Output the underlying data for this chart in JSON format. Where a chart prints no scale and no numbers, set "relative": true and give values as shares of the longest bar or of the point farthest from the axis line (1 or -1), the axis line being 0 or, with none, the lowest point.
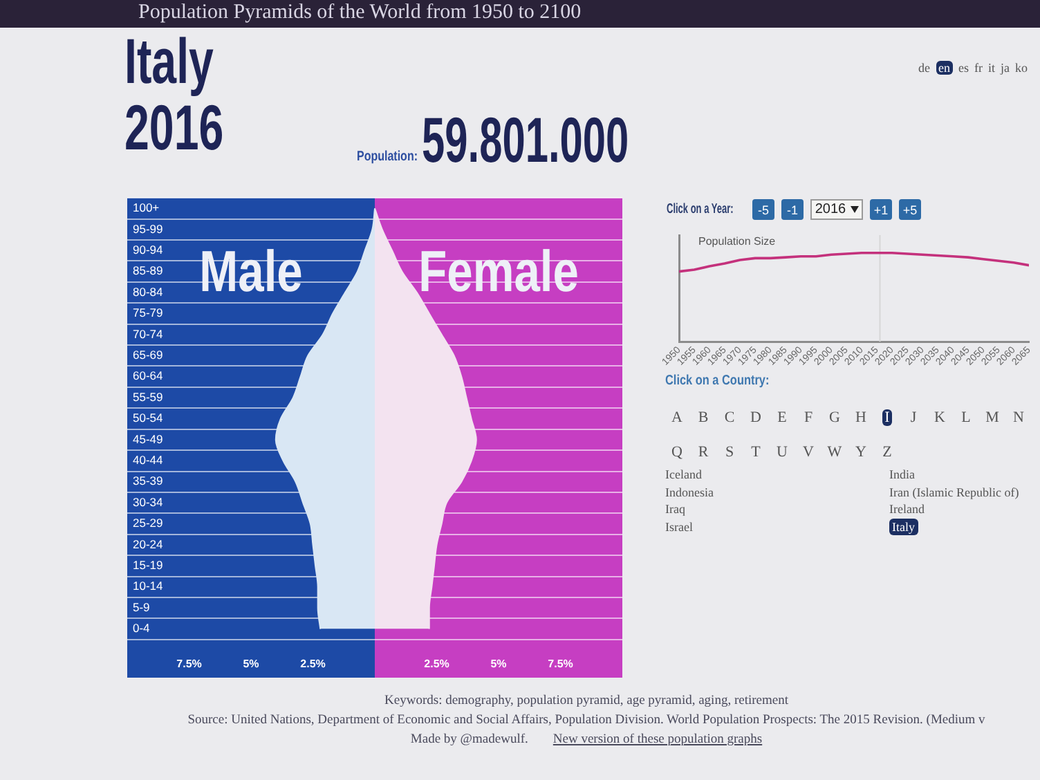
{
  "chart_data": [
    {
      "type": "area",
      "orientation": "horizontal",
      "title": "Italy 2016",
      "categories": [
        "100+",
        "95-99",
        "90-94",
        "85-89",
        "80-84",
        "75-79",
        "70-74",
        "65-69",
        "60-64",
        "55-59",
        "50-54",
        "45-49",
        "40-44",
        "35-39",
        "30-34",
        "25-29",
        "20-24",
        "15-19",
        "10-14",
        "5-9",
        "0-4"
      ],
      "series": [
        {
          "name": "Male",
          "color": "#d9e7f4",
          "values": [
            0,
            -0.1,
            -0.4,
            -0.7,
            -1.2,
            -1.7,
            -2.1,
            -2.7,
            -3,
            -3.3,
            -3.8,
            -4,
            -3.7,
            -3.2,
            -2.9,
            -2.6,
            -2.5,
            -2.4,
            -2.3,
            -2.3,
            -2.2
          ]
        },
        {
          "name": "Female",
          "color": "#f3e3f0",
          "values": [
            0,
            0.3,
            0.7,
            1.1,
            1.7,
            2.2,
            2.7,
            3.2,
            3.5,
            3.7,
            3.9,
            4.1,
            3.9,
            3.5,
            2.9,
            2.7,
            2.5,
            2.4,
            2.3,
            2.2,
            2.2
          ]
        }
      ],
      "xlim": [
        -10,
        10
      ],
      "xticks": [
        {
          "value": -7.5,
          "label": "7.5%"
        },
        {
          "value": -5,
          "label": "5%"
        },
        {
          "value": -2.5,
          "label": "2.5%"
        },
        {
          "value": 2.5,
          "label": "2.5%"
        },
        {
          "value": 5,
          "label": "5%"
        },
        {
          "value": 7.5,
          "label": "7.5%"
        }
      ],
      "grid": "y",
      "bands": [
        {
          "axis": "x",
          "from": -10,
          "to": 0,
          "color": "#1d4aa6"
        },
        {
          "axis": "x",
          "from": 0,
          "to": 10,
          "color": "#c63ec2"
        }
      ],
      "annotations": [
        "Population:",
        "59.801.000",
        "Keywords: demography, population pyramid, age pyramid, aging, retirement",
        "Source: United Nations, Department of Economic and Social Affairs, Population Division. World Population Prospects: The 2015 Revision. (Medium v",
        "Made by @madewulf.",
        "New version of these population graphs"
      ]
    },
    {
      "type": "line",
      "title": "Population Size",
      "x": [
        1950,
        1955,
        1960,
        1965,
        1970,
        1975,
        1980,
        1985,
        1990,
        1995,
        2000,
        2005,
        2010,
        2015,
        2020,
        2025,
        2030,
        2035,
        2040,
        2045,
        2050,
        2055,
        2060,
        2065
      ],
      "values": [
        0.79,
        0.81,
        0.85,
        0.88,
        0.92,
        0.94,
        0.94,
        0.95,
        0.96,
        0.96,
        0.98,
        0.99,
        1,
        1,
        1,
        0.99,
        0.98,
        0.97,
        0.96,
        0.95,
        0.93,
        0.91,
        0.89,
        0.86
      ],
      "color": "#c4317c",
      "relative": true,
      "xlim": [
        1950,
        2065
      ],
      "xticks": [
        1950,
        1955,
        1960,
        1965,
        1970,
        1975,
        1980,
        1985,
        1990,
        1995,
        2000,
        2005,
        2010,
        2015,
        2020,
        2025,
        2030,
        2035,
        2040,
        2045,
        2050,
        2055,
        2060,
        2065
      ],
      "ref_lines": [
        {
          "axis": "x",
          "value": 2016,
          "color": "#d6d6d6"
        }
      ],
      "annotations": [
        "Click on a Year:",
        "-5",
        "-1",
        "2016",
        "+1",
        "+5"
      ]
    },
    {
      "type": "other",
      "title": "Population Pyramids of the World from 1950 to 2100",
      "annotations": [
        "de",
        "en",
        "es",
        "fr",
        "it",
        "ja",
        "ko"
      ]
    },
    {
      "type": "other",
      "title": "Click on a Country:",
      "annotations": [
        "A",
        "B",
        "C",
        "D",
        "E",
        "F",
        "G",
        "H",
        "I",
        "J",
        "K",
        "L",
        "M",
        "N",
        "Q",
        "R",
        "S",
        "T",
        "U",
        "V",
        "W",
        "Y",
        "Z"
      ]
    },
    {
      "type": "other",
      "annotations": [
        "Iceland",
        "India",
        "Indonesia",
        "Iran (Islamic Republic of)",
        "Iraq",
        "Ireland",
        "Israel",
        "Italy"
      ]
    }
  ]
}
